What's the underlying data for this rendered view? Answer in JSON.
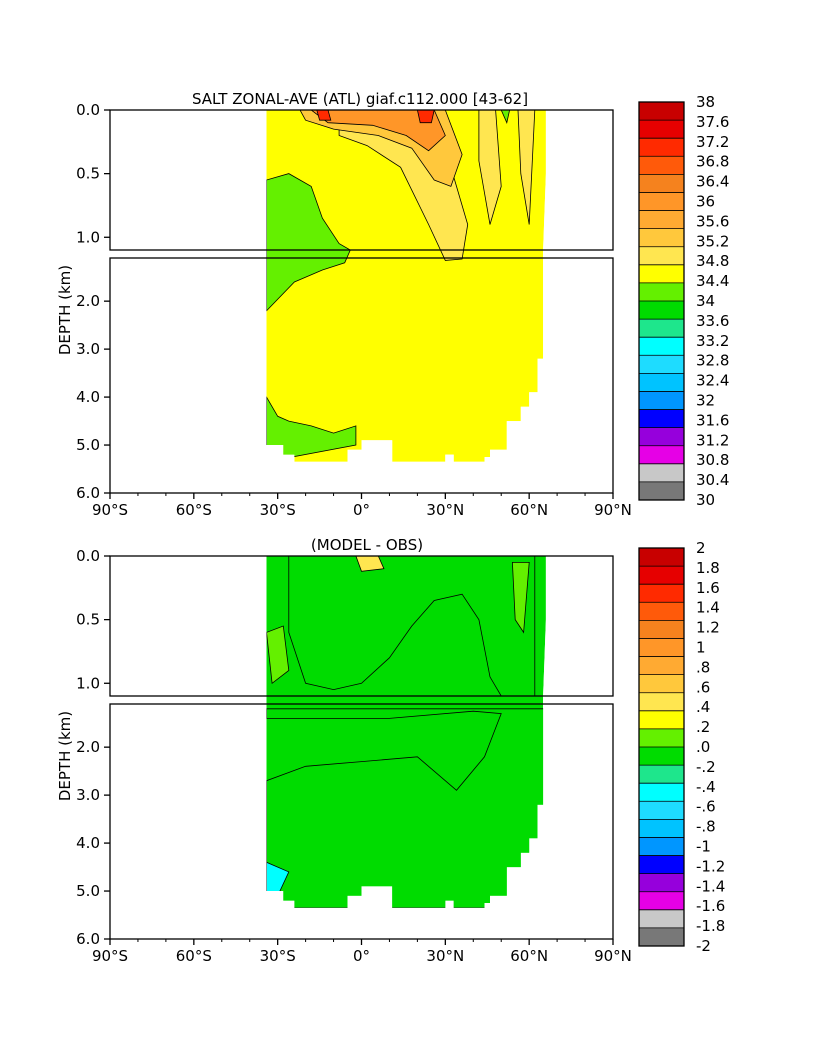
{
  "chart_data": [
    {
      "type": "heatmap",
      "title": "SALT ZONAL-AVE (ATL) giaf.c112.000 [43-62]",
      "xlabel": "",
      "ylabel": "DEPTH (km)",
      "xlim": [
        -90,
        90
      ],
      "ylim": [
        6.0,
        0.0
      ],
      "x_ticks": [
        "90°S",
        "60°S",
        "30°S",
        "0°",
        "30°N",
        "60°N",
        "90°N"
      ],
      "y_ticks_upper": [
        "0.0",
        "0.5",
        "1.0"
      ],
      "y_ticks_lower": [
        "2.0",
        "3.0",
        "4.0",
        "5.0",
        "6.0"
      ],
      "colorbar_labels": [
        "38",
        "37.6",
        "37.2",
        "36.8",
        "36.4",
        "36",
        "35.6",
        "35.2",
        "34.8",
        "34.4",
        "34",
        "33.6",
        "33.2",
        "32.8",
        "32.4",
        "32",
        "31.6",
        "31.2",
        "30.8",
        "30.4",
        "30"
      ],
      "colorbar_colors": [
        "#c80000",
        "#e60000",
        "#ff2a00",
        "#ff5a0a",
        "#f5821e",
        "#ff9628",
        "#ffaa32",
        "#ffc83c",
        "#ffe650",
        "#ffff00",
        "#64f000",
        "#00dc00",
        "#1ee68c",
        "#00ffff",
        "#1edcff",
        "#00c3ff",
        "#0096ff",
        "#0000ff",
        "#9600dc",
        "#e600e6",
        "#c8c8c8",
        "#787878"
      ],
      "fields": [
        {
          "value_range": "34.8-35.2",
          "region": "bulk interior and deep ocean, 34°S-65°N"
        },
        {
          "value_range": "34.4-34.8",
          "region": "Antarctic Intermediate Water tongue 34°S-5°N, 0.4-2.2 km, and bottom water south of the equator"
        },
        {
          "value_range": "35.2-36.8",
          "region": "upper 1 km subtropics, 20°S-50°N"
        },
        {
          "value_range": "36.8-37.6",
          "region": "surface salinity maxima near 18°S and 22°N"
        }
      ]
    },
    {
      "type": "heatmap",
      "title": "(MODEL - OBS)",
      "xlabel": "",
      "ylabel": "DEPTH (km)",
      "xlim": [
        -90,
        90
      ],
      "ylim": [
        6.0,
        0.0
      ],
      "x_ticks": [
        "90°S",
        "60°S",
        "30°S",
        "0°",
        "30°N",
        "60°N",
        "90°N"
      ],
      "y_ticks_upper": [
        "0.0",
        "0.5",
        "1.0"
      ],
      "y_ticks_lower": [
        "2.0",
        "3.0",
        "4.0",
        "5.0",
        "6.0"
      ],
      "colorbar_labels": [
        "2",
        "1.8",
        "1.6",
        "1.4",
        "1.2",
        "1",
        ".8",
        ".6",
        ".4",
        ".2",
        ".0",
        "-.2",
        "-.4",
        "-.6",
        "-.8",
        "-1",
        "-1.2",
        "-1.4",
        "-1.6",
        "-1.8",
        "-2"
      ],
      "colorbar_colors": [
        "#c80000",
        "#e60000",
        "#ff2a00",
        "#ff5a0a",
        "#f5821e",
        "#ff9628",
        "#ffaa32",
        "#ffc83c",
        "#ffe650",
        "#ffff00",
        "#64f000",
        "#00dc00",
        "#1ee68c",
        "#00ffff",
        "#1edcff",
        "#00c3ff",
        "#0096ff",
        "#0000ff",
        "#9600dc",
        "#e600e6",
        "#c8c8c8",
        "#787878"
      ],
      "fields": [
        {
          "value_range": "0.0-0.2",
          "region": "most of the section, 34°S-65°N"
        },
        {
          "value_range": "-0.2-0.0",
          "region": "upper 1 km 34°S-25°S, 15°N-45°N; band 1.3-2.2 km 34°S-50°N"
        },
        {
          "value_range": "0.2-0.4",
          "region": "upper 1 km near 10°S and 50°N-60°N"
        }
      ]
    }
  ]
}
